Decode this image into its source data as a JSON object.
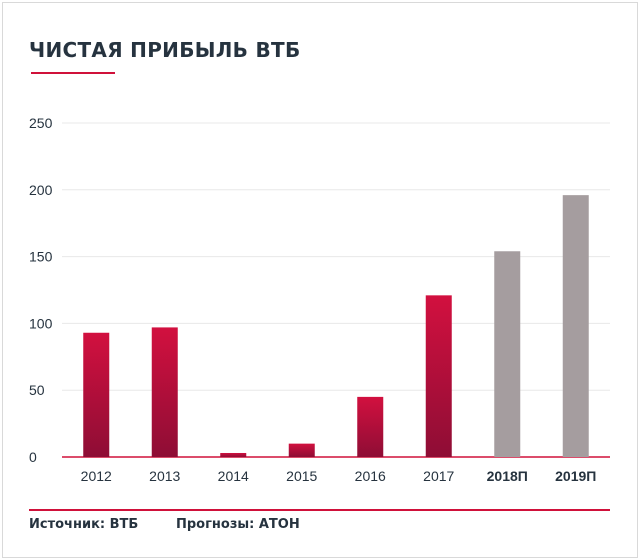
{
  "header": {
    "title": "ЧИСТАЯ ПРИБЫЛЬ ВТБ"
  },
  "footer": {
    "source": "Источник: ВТБ",
    "forecast": "Прогнозы: АТОН"
  },
  "colors": {
    "actual": "#c8103d",
    "forecast": "#a59d9f",
    "grid": "#e8e8e8",
    "axis": "#d0113a",
    "text": "#26333f"
  },
  "chart_data": {
    "type": "bar",
    "title": "ЧИСТАЯ ПРИБЫЛЬ ВТБ",
    "categories": [
      "2012",
      "2013",
      "2014",
      "2015",
      "2016",
      "2017",
      "2018П",
      "2019П"
    ],
    "values": [
      93,
      97,
      3,
      10,
      45,
      121,
      154,
      196
    ],
    "forecast": [
      false,
      false,
      false,
      false,
      false,
      false,
      true,
      true
    ],
    "ylim": [
      0,
      250
    ],
    "yticks": [
      0,
      50,
      100,
      150,
      200,
      250
    ],
    "grid": true
  }
}
